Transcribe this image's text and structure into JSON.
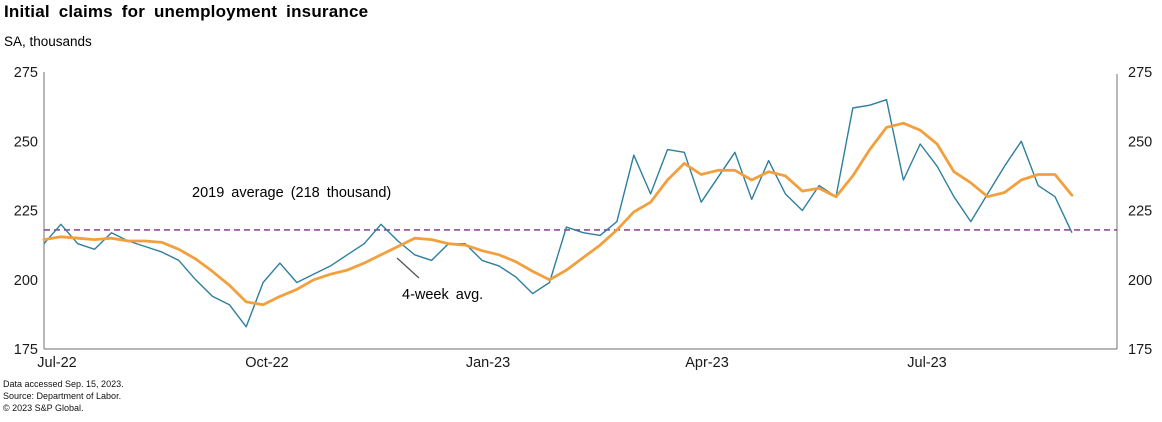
{
  "header": {
    "title": "Initial claims for unemployment insurance",
    "subtitle": "SA, thousands"
  },
  "footer": {
    "line1": "Data accessed Sep. 15, 2023.",
    "line2": "Source: Department of Labor.",
    "line3": "© 2023 S&P Global."
  },
  "chart_data": {
    "type": "line",
    "title": "Initial claims for unemployment insurance",
    "ylabel": "SA, thousands",
    "ylim": [
      175,
      275
    ],
    "grid": false,
    "y_ticks": [
      175,
      200,
      225,
      250,
      275
    ],
    "y_axis_sides": "both",
    "x_tick_labels": [
      "Jul-22",
      "Oct-22",
      "Jan-23",
      "Apr-23",
      "Jul-23"
    ],
    "reference_line": {
      "value": 218,
      "label": "2019 average  (218 thousand)",
      "style": "dashed",
      "color": "#7f2d8a"
    },
    "annotations": {
      "four_week_avg_label": "4-week avg."
    },
    "series": [
      {
        "name": "Initial claims, weekly",
        "color": "#2e7f9e",
        "week_ending": [
          "2022-07-02",
          "2022-07-09",
          "2022-07-16",
          "2022-07-23",
          "2022-07-30",
          "2022-08-06",
          "2022-08-13",
          "2022-08-20",
          "2022-08-27",
          "2022-09-03",
          "2022-09-10",
          "2022-09-17",
          "2022-09-24",
          "2022-10-01",
          "2022-10-08",
          "2022-10-15",
          "2022-10-22",
          "2022-10-29",
          "2022-11-05",
          "2022-11-12",
          "2022-11-19",
          "2022-11-26",
          "2022-12-03",
          "2022-12-10",
          "2022-12-17",
          "2022-12-24",
          "2022-12-31",
          "2023-01-07",
          "2023-01-14",
          "2023-01-21",
          "2023-01-28",
          "2023-02-04",
          "2023-02-11",
          "2023-02-18",
          "2023-02-25",
          "2023-03-04",
          "2023-03-11",
          "2023-03-18",
          "2023-03-25",
          "2023-04-01",
          "2023-04-08",
          "2023-04-15",
          "2023-04-22",
          "2023-04-29",
          "2023-05-06",
          "2023-05-13",
          "2023-05-20",
          "2023-05-27",
          "2023-06-03",
          "2023-06-10",
          "2023-06-17",
          "2023-06-24",
          "2023-07-01",
          "2023-07-08",
          "2023-07-15",
          "2023-07-22",
          "2023-07-29",
          "2023-08-05",
          "2023-08-12",
          "2023-08-19",
          "2023-08-26",
          "2023-09-02"
        ],
        "values": [
          213,
          220,
          213,
          211,
          217,
          214,
          212,
          210,
          207,
          200,
          194,
          191,
          183,
          199,
          206,
          199,
          202,
          205,
          209,
          213,
          220,
          214,
          209,
          207,
          213,
          213,
          207,
          205,
          201,
          195,
          199,
          219,
          217,
          216,
          221,
          245,
          231,
          247,
          246,
          228,
          237,
          246,
          229,
          243,
          231,
          225,
          234,
          230,
          262,
          263,
          265,
          236,
          249,
          241,
          230,
          221,
          231,
          241,
          250,
          234,
          230,
          217
        ]
      },
      {
        "name": "4-week avg.",
        "color": "#f2a03d",
        "values": [
          214.5,
          215.5,
          215,
          214.5,
          215,
          214,
          214,
          213.5,
          211,
          207.5,
          203,
          198,
          192,
          191,
          194,
          196.5,
          200,
          202,
          203.5,
          206,
          209,
          212,
          215,
          214.5,
          213,
          212.5,
          210.5,
          209,
          206.5,
          203,
          200,
          203.5,
          208,
          212.5,
          218,
          224.5,
          228,
          236,
          242,
          238,
          239.5,
          239.5,
          236,
          239,
          237.5,
          232,
          233,
          230,
          237.5,
          247,
          255,
          256.5,
          254,
          249,
          239,
          235,
          230,
          231.5,
          236,
          238,
          238,
          230.5
        ]
      }
    ]
  },
  "colors": {
    "weekly_line": "#2e7f9e",
    "avg_line": "#f2a03d",
    "reference_line": "#7f2d8a",
    "axis": "#8a8a8a",
    "text": "#000000"
  }
}
